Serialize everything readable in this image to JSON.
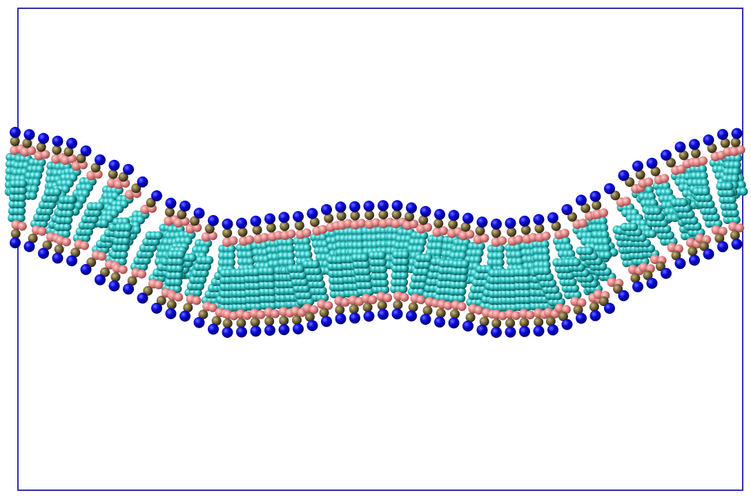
{
  "scene": {
    "subject": "lipid-bilayer-membrane",
    "style": "space-filling-spheres",
    "colors": {
      "background": "#ffffff",
      "box_outline": "#2b2ba8",
      "headgroup": "#0a0adf",
      "phosphate": "#7a6a3a",
      "glycerol": "#e88a8a",
      "tail": "#33c4c4",
      "tail_shadow": "#1f8c8c"
    }
  }
}
